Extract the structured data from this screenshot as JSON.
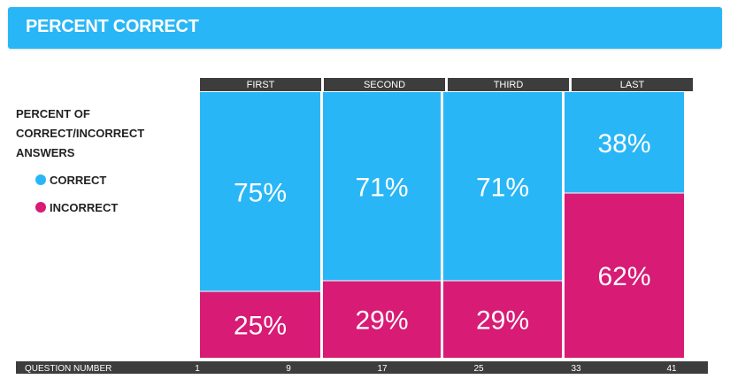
{
  "header": {
    "title": "PERCENT CORRECT"
  },
  "legend": {
    "title": "PERCENT OF CORRECT/INCORRECT ANSWERS",
    "items": [
      {
        "label": "CORRECT",
        "color": "#29b6f6"
      },
      {
        "label": "INCORRECT",
        "color": "#d81b75"
      }
    ]
  },
  "chart_data": {
    "type": "bar",
    "subtype": "stacked-100",
    "categories": [
      "FIRST",
      "SECOND",
      "THIRD",
      "LAST"
    ],
    "series": [
      {
        "name": "CORRECT",
        "values": [
          75,
          71,
          71,
          38
        ],
        "color": "#29b6f6"
      },
      {
        "name": "INCORRECT",
        "values": [
          25,
          29,
          29,
          62
        ],
        "color": "#d81b75"
      }
    ],
    "value_labels": [
      [
        "75%",
        "71%",
        "71%",
        "38%"
      ],
      [
        "25%",
        "29%",
        "29%",
        "62%"
      ]
    ],
    "xlabel": "QUESTION NUMBER",
    "x_ticks": [
      1,
      9,
      17,
      25,
      33,
      41
    ],
    "ylim": [
      0,
      100
    ],
    "grid": false,
    "legend_position": "left"
  }
}
